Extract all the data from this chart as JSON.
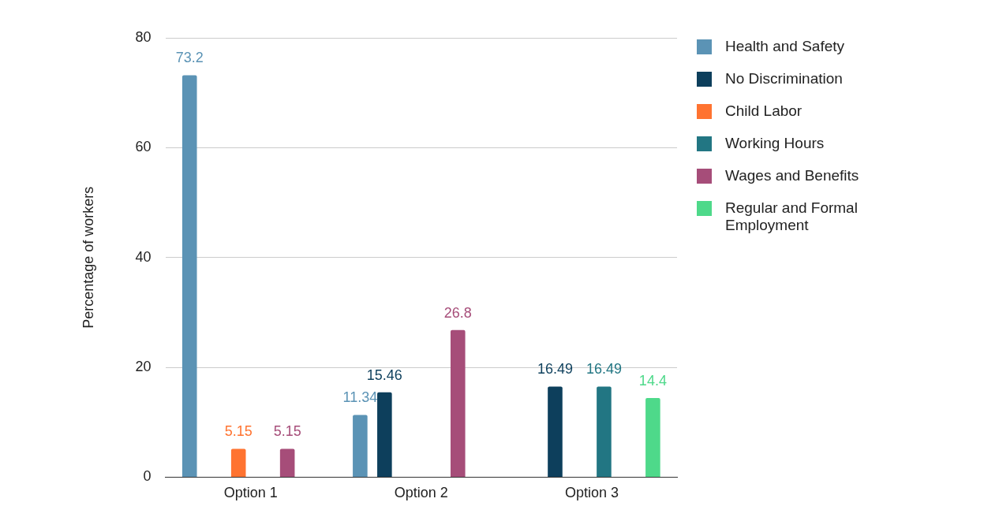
{
  "chart_data": {
    "type": "bar",
    "ylabel": "Percentage of workers",
    "categories": [
      "Option 1",
      "Option 2",
      "Option 3"
    ],
    "series": [
      {
        "name": "Health and Safety",
        "color": "#5b93b5",
        "values": [
          73.2,
          11.34,
          null
        ]
      },
      {
        "name": "No Discrimination",
        "color": "#0d3f5c",
        "values": [
          null,
          15.46,
          16.49
        ]
      },
      {
        "name": "Child Labor",
        "color": "#ff7330",
        "values": [
          5.15,
          null,
          null
        ]
      },
      {
        "name": "Working Hours",
        "color": "#227683",
        "values": [
          null,
          null,
          16.49
        ]
      },
      {
        "name": "Wages and Benefits",
        "color": "#a64d79",
        "values": [
          5.15,
          26.8,
          null
        ]
      },
      {
        "name": "Regular and Formal Employment",
        "color": "#4ed98a",
        "values": [
          null,
          null,
          14.4
        ]
      }
    ],
    "ylim": [
      0,
      80
    ],
    "yticks": [
      0,
      20,
      40,
      60,
      80
    ],
    "grid": "y",
    "legend": "top right",
    "data_labels": true
  }
}
